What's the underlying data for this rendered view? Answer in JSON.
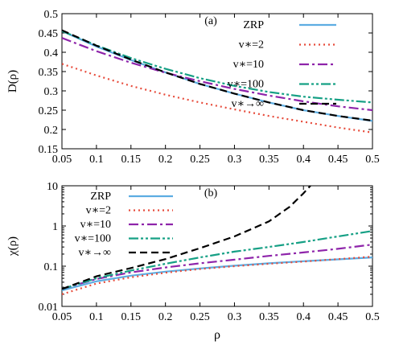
{
  "chart_data": [
    {
      "type": "line",
      "panel_label": "(a)",
      "ylabel": "D(ρ)",
      "xlabel": "",
      "xlim": [
        0.05,
        0.5
      ],
      "ylim": [
        0.15,
        0.5
      ],
      "y_scale": "linear",
      "x_ticks": [
        "0.05",
        "0.1",
        "0.15",
        "0.2",
        "0.25",
        "0.3",
        "0.35",
        "0.4",
        "0.45",
        "0.5"
      ],
      "y_ticks": [
        "0.15",
        "0.2",
        "0.25",
        "0.3",
        "0.35",
        "0.4",
        "0.45",
        "0.5"
      ],
      "legend_position": "top-right",
      "series": [
        {
          "name": "ZRP",
          "color": "#5dade2",
          "dash": "solid",
          "x": [
            0.05,
            0.1,
            0.15,
            0.2,
            0.25,
            0.3,
            0.35,
            0.4,
            0.45,
            0.5
          ],
          "values": [
            0.455,
            0.415,
            0.38,
            0.348,
            0.318,
            0.293,
            0.27,
            0.25,
            0.235,
            0.222
          ]
        },
        {
          "name": "v∗=2",
          "color": "#e74c3c",
          "dash": "dot",
          "x": [
            0.05,
            0.1,
            0.15,
            0.2,
            0.25,
            0.3,
            0.35,
            0.4,
            0.45,
            0.5
          ],
          "values": [
            0.37,
            0.34,
            0.313,
            0.29,
            0.27,
            0.252,
            0.235,
            0.22,
            0.205,
            0.192
          ]
        },
        {
          "name": "v∗=10",
          "color": "#8e24aa",
          "dash": "dashdot",
          "x": [
            0.05,
            0.1,
            0.15,
            0.2,
            0.25,
            0.3,
            0.35,
            0.4,
            0.45,
            0.5
          ],
          "values": [
            0.437,
            0.403,
            0.373,
            0.347,
            0.325,
            0.305,
            0.288,
            0.273,
            0.26,
            0.25
          ]
        },
        {
          "name": "v∗=100",
          "color": "#16a085",
          "dash": "dashdotdot",
          "x": [
            0.05,
            0.1,
            0.15,
            0.2,
            0.25,
            0.3,
            0.35,
            0.4,
            0.45,
            0.5
          ],
          "values": [
            0.455,
            0.418,
            0.385,
            0.357,
            0.333,
            0.313,
            0.297,
            0.285,
            0.277,
            0.27
          ]
        },
        {
          "name": "v∗→∞",
          "color": "#000000",
          "dash": "dash",
          "x": [
            0.05,
            0.1,
            0.15,
            0.2,
            0.25,
            0.3,
            0.35,
            0.4,
            0.45,
            0.5
          ],
          "values": [
            0.457,
            0.417,
            0.381,
            0.348,
            0.318,
            0.293,
            0.27,
            0.25,
            0.235,
            0.223
          ]
        }
      ]
    },
    {
      "type": "line",
      "panel_label": "(b)",
      "ylabel": "χ(ρ)",
      "xlabel": "ρ",
      "xlim": [
        0.05,
        0.5
      ],
      "ylim": [
        0.01,
        10
      ],
      "y_scale": "log",
      "x_ticks": [
        "0.05",
        "0.1",
        "0.15",
        "0.2",
        "0.25",
        "0.3",
        "0.35",
        "0.4",
        "0.45",
        "0.5"
      ],
      "y_ticks": [
        "0.01",
        "0.1",
        "1",
        "10"
      ],
      "legend_position": "top-left",
      "series": [
        {
          "name": "ZRP",
          "color": "#5dade2",
          "dash": "solid",
          "x": [
            0.05,
            0.1,
            0.15,
            0.2,
            0.25,
            0.3,
            0.35,
            0.4,
            0.45,
            0.5
          ],
          "values": [
            0.025,
            0.042,
            0.058,
            0.073,
            0.088,
            0.103,
            0.118,
            0.133,
            0.148,
            0.165
          ]
        },
        {
          "name": "v∗=2",
          "color": "#e74c3c",
          "dash": "dot",
          "x": [
            0.05,
            0.1,
            0.15,
            0.2,
            0.25,
            0.3,
            0.35,
            0.4,
            0.45,
            0.5
          ],
          "values": [
            0.02,
            0.037,
            0.053,
            0.069,
            0.085,
            0.1,
            0.115,
            0.13,
            0.15,
            0.172
          ]
        },
        {
          "name": "v∗=10",
          "color": "#8e24aa",
          "dash": "dashdot",
          "x": [
            0.05,
            0.1,
            0.15,
            0.2,
            0.25,
            0.3,
            0.35,
            0.4,
            0.45,
            0.5
          ],
          "values": [
            0.027,
            0.048,
            0.07,
            0.093,
            0.118,
            0.145,
            0.18,
            0.22,
            0.27,
            0.345
          ]
        },
        {
          "name": "v∗=100",
          "color": "#16a085",
          "dash": "dashdotdot",
          "x": [
            0.05,
            0.1,
            0.15,
            0.2,
            0.25,
            0.3,
            0.35,
            0.4,
            0.45,
            0.5
          ],
          "values": [
            0.027,
            0.05,
            0.078,
            0.115,
            0.165,
            0.23,
            0.3,
            0.4,
            0.55,
            0.75
          ]
        },
        {
          "name": "v∗→∞",
          "color": "#000000",
          "dash": "dash",
          "x": [
            0.05,
            0.1,
            0.15,
            0.2,
            0.25,
            0.3,
            0.35,
            0.38,
            0.4,
            0.41
          ],
          "values": [
            0.027,
            0.056,
            0.09,
            0.15,
            0.28,
            0.55,
            1.3,
            3,
            6.5,
            10
          ]
        }
      ]
    }
  ]
}
